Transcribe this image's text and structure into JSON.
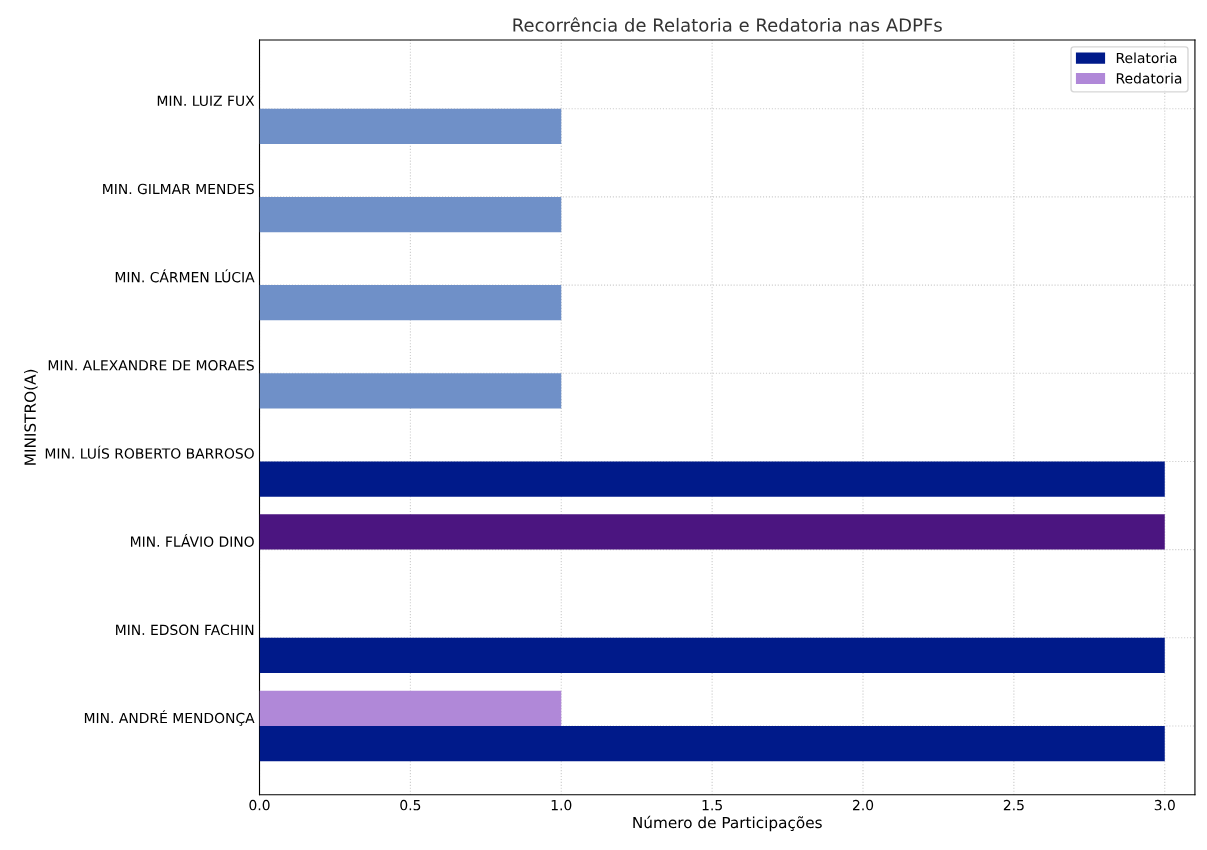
{
  "chart_data": {
    "type": "bar",
    "orientation": "horizontal",
    "title": "Recorrência de Relatoria e Redatoria nas ADPFs",
    "xlabel": "Número de Participações",
    "ylabel": "MINISTRO(A)",
    "categories": [
      "MIN. LUIZ FUX",
      "MIN. GILMAR MENDES",
      "MIN. CÁRMEN LÚCIA",
      "MIN. ALEXANDRE DE MORAES",
      "MIN. LUÍS ROBERTO BARROSO",
      "MIN. FLÁVIO DINO",
      "MIN. EDSON FACHIN",
      "MIN. ANDRÉ MENDONÇA"
    ],
    "series": [
      {
        "name": "Relatoria",
        "color": "#001a8a",
        "values": [
          1,
          1,
          1,
          1,
          3,
          null,
          3,
          3
        ],
        "colors": [
          "#6f90c8",
          "#6f90c8",
          "#6f90c8",
          "#6f90c8",
          "#001a8a",
          null,
          "#001a8a",
          "#001a8a"
        ]
      },
      {
        "name": "Redatoria",
        "color": "#b088d8",
        "values": [
          null,
          null,
          null,
          null,
          null,
          3,
          null,
          1
        ],
        "colors": [
          null,
          null,
          null,
          null,
          null,
          "#4b1580",
          null,
          "#b088d8"
        ]
      }
    ],
    "xlim": [
      0,
      3.1
    ],
    "xticks": [
      {
        "value": 0,
        "label": "0.0"
      },
      {
        "value": 0.5,
        "label": "0.5"
      },
      {
        "value": 1,
        "label": "1.0"
      },
      {
        "value": 1.5,
        "label": "1.5"
      },
      {
        "value": 2,
        "label": "2.0"
      },
      {
        "value": 2.5,
        "label": "2.5"
      },
      {
        "value": 3,
        "label": "3.0"
      }
    ],
    "grid": true,
    "legend": "top right"
  }
}
